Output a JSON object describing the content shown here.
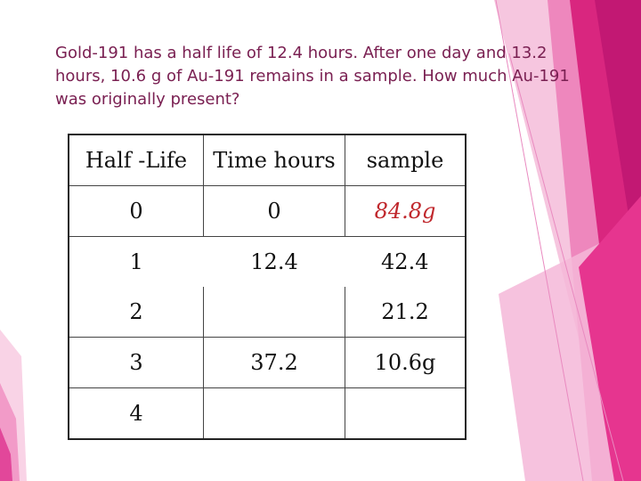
{
  "slide": {
    "question": "Gold-191 has a half life of 12.4 hours. After one day and 13.2 hours, 10.6 g of Au-191 remains in a sample. How much Au-191 was originally present?",
    "accent_colors": [
      "#e0218a",
      "#f4a6cf",
      "#c21873"
    ]
  },
  "table": {
    "headers": [
      "Half -Life",
      "Time hours",
      "sample"
    ],
    "rows": [
      {
        "half_life": "0",
        "time": "0",
        "sample": "84.8g"
      },
      {
        "half_life": "1",
        "time": "12.4",
        "sample": "42.4"
      },
      {
        "half_life": "2",
        "time": "",
        "sample": "21.2"
      },
      {
        "half_life": "3",
        "time": "37.2",
        "sample": "10.6g"
      },
      {
        "half_life": "4",
        "time": "",
        "sample": ""
      }
    ],
    "highlight_color": "#c0282d"
  }
}
